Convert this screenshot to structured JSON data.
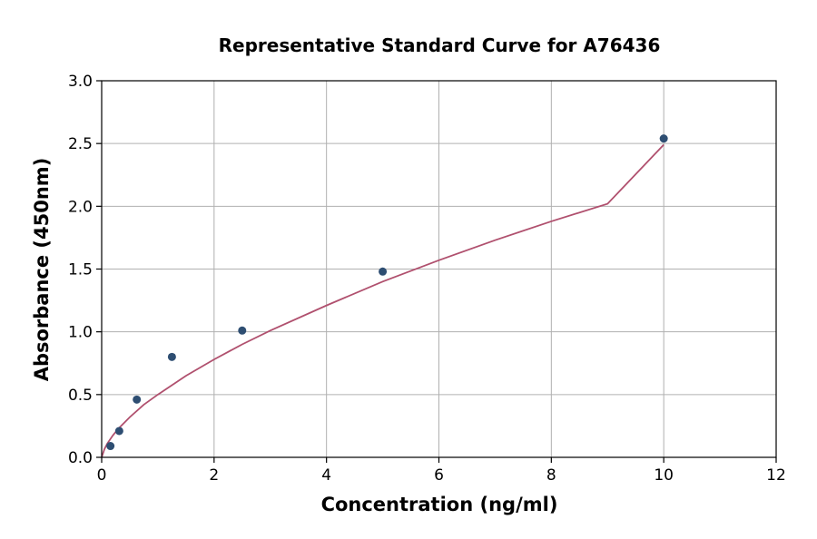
{
  "chart_data": {
    "type": "scatter",
    "title": "Representative Standard Curve for A76436",
    "xlabel": "Concentration (ng/ml)",
    "ylabel": "Absorbance (450nm)",
    "xlim": [
      0,
      12
    ],
    "ylim": [
      0,
      3.0
    ],
    "xticks": [
      0,
      2,
      4,
      6,
      8,
      10,
      12
    ],
    "xtick_labels": [
      "0",
      "2",
      "4",
      "6",
      "8",
      "10",
      "12"
    ],
    "yticks": [
      0,
      0.5,
      1.0,
      1.5,
      2.0,
      2.5,
      3.0
    ],
    "ytick_labels": [
      "0.0",
      "0.5",
      "1.0",
      "1.5",
      "2.0",
      "2.5",
      "3.0"
    ],
    "grid": true,
    "points": {
      "x": [
        0.156,
        0.313,
        0.625,
        1.25,
        2.5,
        5,
        10
      ],
      "y": [
        0.09,
        0.21,
        0.46,
        0.8,
        1.01,
        1.48,
        2.54
      ],
      "color": "#2e4e72"
    },
    "fit_curve": {
      "x": [
        0,
        0.05,
        0.1,
        0.2,
        0.3,
        0.5,
        0.75,
        1,
        1.5,
        2,
        2.5,
        3,
        4,
        5,
        6,
        7,
        8,
        9,
        10
      ],
      "y": [
        0,
        0.066,
        0.11,
        0.175,
        0.23,
        0.32,
        0.42,
        0.5,
        0.65,
        0.78,
        0.9,
        1.01,
        1.21,
        1.4,
        1.57,
        1.73,
        1.88,
        2.02,
        2.49
      ],
      "color": "#b0506e"
    }
  }
}
